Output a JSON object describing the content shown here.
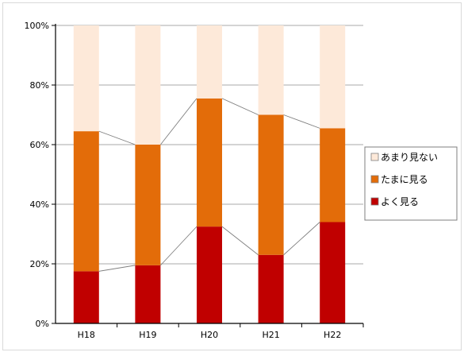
{
  "chart_data": {
    "type": "bar",
    "stacked": true,
    "percent": true,
    "categories": [
      "H18",
      "H19",
      "H20",
      "H21",
      "H22"
    ],
    "series": [
      {
        "name": "よく見る",
        "color": "#c00000",
        "values": [
          17.5,
          19.5,
          32.5,
          23.0,
          34.0
        ]
      },
      {
        "name": "たまに見る",
        "color": "#e36c09",
        "values": [
          47.0,
          40.5,
          43.0,
          47.0,
          31.5
        ]
      },
      {
        "name": "あまり見ない",
        "color": "#fde9d9",
        "values": [
          35.5,
          40.0,
          24.5,
          30.0,
          34.5
        ]
      }
    ],
    "y_ticks": [
      "0%",
      "20%",
      "40%",
      "60%",
      "80%",
      "100%"
    ],
    "ylim": [
      0,
      100
    ],
    "grid": true,
    "series_lines": true,
    "legend_position": "right",
    "legend_order": [
      "あまり見ない",
      "たまに見る",
      "よく見る"
    ]
  }
}
